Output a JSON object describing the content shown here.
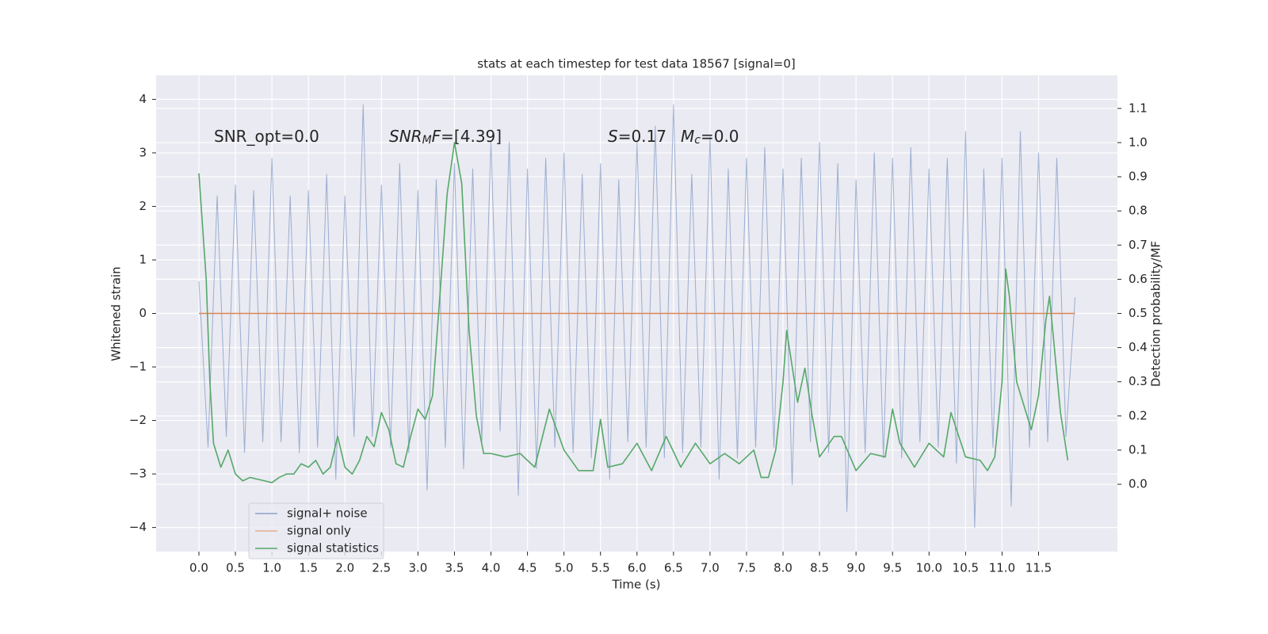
{
  "chart_data": {
    "type": "line",
    "title": "stats at each timestep for test data 18567 [signal=0]",
    "xlabel": "Time (s)",
    "ylabel": "Whitened strain",
    "y2label": "Detection probability/MF",
    "annotations": [
      [
        {
          "text": "SNR_opt=0.0"
        }
      ],
      [
        {
          "text": "SNR",
          "style": "italic"
        },
        {
          "text": "M",
          "style": "sub"
        },
        {
          "text": "F",
          "style": "italic"
        },
        {
          "text": "=[4.39]"
        }
      ],
      [
        {
          "text": "S",
          "style": "italic"
        },
        {
          "text": "=0.17"
        }
      ],
      [
        {
          "text": "M",
          "style": "italic"
        },
        {
          "text": "c",
          "style": "sub"
        },
        {
          "text": "=0.0"
        }
      ]
    ],
    "xlim": [
      -0.586,
      12.58
    ],
    "ylim": [
      -4.45,
      4.45
    ],
    "y2lim": [
      -0.197,
      1.197
    ],
    "xticks": [
      {
        "value": 0,
        "label": "0.0"
      },
      0.5,
      {
        "value": 1,
        "label": "1.0"
      },
      1.5,
      {
        "value": 2,
        "label": "2.0"
      },
      2.5,
      {
        "value": 3,
        "label": "3.0"
      },
      3.5,
      {
        "value": 4,
        "label": "4.0"
      },
      4.5,
      {
        "value": 5,
        "label": "5.0"
      },
      5.5,
      {
        "value": 6,
        "label": "6.0"
      },
      6.5,
      {
        "value": 7,
        "label": "7.0"
      },
      7.5,
      {
        "value": 8,
        "label": "8.0"
      },
      8.5,
      {
        "value": 9,
        "label": "9.0"
      },
      9.5,
      {
        "value": 10,
        "label": "10.0"
      },
      10.5,
      {
        "value": 11,
        "label": "11.0"
      },
      11.5
    ],
    "yticks": [
      {
        "value": -4,
        "label": "−4"
      },
      {
        "value": -3,
        "label": "−3"
      },
      {
        "value": -2,
        "label": "−2"
      },
      {
        "value": -1,
        "label": "−1"
      },
      0,
      1,
      2,
      3,
      4
    ],
    "y2ticks": [
      {
        "value": 0,
        "label": "0.0"
      },
      0.1,
      0.2,
      0.3,
      0.4,
      0.5,
      0.6,
      0.7,
      0.8,
      0.9,
      {
        "value": 1,
        "label": "1.0"
      },
      1.1
    ],
    "grid": true,
    "legend": "lower left",
    "series": [
      {
        "name": "signal+ noise",
        "color": "#4c72b0",
        "x": [
          0,
          0.125,
          0.25,
          0.375,
          0.5,
          0.625,
          0.75,
          0.875,
          1,
          1.125,
          1.25,
          1.375,
          1.5,
          1.625,
          1.75,
          1.875,
          2,
          2.125,
          2.25,
          2.375,
          2.5,
          2.625,
          2.75,
          2.875,
          3,
          3.125,
          3.25,
          3.375,
          3.5,
          3.625,
          3.75,
          3.875,
          4,
          4.125,
          4.25,
          4.375,
          4.5,
          4.625,
          4.75,
          4.875,
          5,
          5.125,
          5.25,
          5.375,
          5.5,
          5.625,
          5.75,
          5.875,
          6,
          6.125,
          6.25,
          6.375,
          6.5,
          6.625,
          6.75,
          6.875,
          7,
          7.125,
          7.25,
          7.375,
          7.5,
          7.625,
          7.75,
          7.875,
          8,
          8.125,
          8.25,
          8.375,
          8.5,
          8.625,
          8.75,
          8.875,
          9,
          9.125,
          9.25,
          9.375,
          9.5,
          9.625,
          9.75,
          9.875,
          10,
          10.125,
          10.25,
          10.375,
          10.5,
          10.625,
          10.75,
          10.875,
          11,
          11.125,
          11.25,
          11.375,
          11.5,
          11.625,
          11.75,
          11.875,
          12
        ],
        "values": [
          0.6,
          -2.5,
          2.2,
          -2.3,
          2.4,
          -2.6,
          2.3,
          -2.4,
          2.9,
          -2.4,
          2.2,
          -2.6,
          2.3,
          -2.5,
          2.6,
          -3.1,
          2.2,
          -2.3,
          3.9,
          -2.3,
          2.4,
          -2.5,
          2.8,
          -2.6,
          2.3,
          -3.3,
          2.5,
          -2.5,
          2.8,
          -2.9,
          2.7,
          -2.4,
          3.2,
          -2.2,
          3.2,
          -3.4,
          2.7,
          -2.9,
          2.9,
          -2.5,
          3.0,
          -2.6,
          2.6,
          -2.7,
          2.8,
          -3.1,
          2.5,
          -2.4,
          3.2,
          -2.5,
          3.5,
          -2.7,
          3.9,
          -2.6,
          2.6,
          -2.5,
          3.3,
          -3.1,
          2.7,
          -2.7,
          2.9,
          -2.5,
          3.1,
          -2.5,
          2.7,
          -3.2,
          2.9,
          -2.4,
          3.2,
          -2.6,
          2.8,
          -3.7,
          2.5,
          -2.6,
          3.0,
          -2.7,
          2.9,
          -2.7,
          3.1,
          -2.4,
          2.7,
          -2.5,
          2.9,
          -2.8,
          3.4,
          -4.0,
          2.7,
          -2.5,
          2.9,
          -3.6,
          3.4,
          -2.5,
          3.0,
          -2.4,
          2.9,
          -2.3,
          0.3
        ]
      },
      {
        "name": "signal only",
        "color": "#dd8452",
        "x": [
          0,
          12
        ],
        "values": [
          0,
          0
        ]
      },
      {
        "name": "signal statistics",
        "color": "#55a868",
        "axis": "y2",
        "x": [
          0,
          0.1,
          0.15,
          0.2,
          0.3,
          0.4,
          0.5,
          0.6,
          0.7,
          0.8,
          0.9,
          1.0,
          1.1,
          1.2,
          1.3,
          1.4,
          1.5,
          1.6,
          1.7,
          1.8,
          1.9,
          2.0,
          2.1,
          2.2,
          2.3,
          2.4,
          2.5,
          2.6,
          2.7,
          2.8,
          2.9,
          3.0,
          3.1,
          3.2,
          3.3,
          3.4,
          3.5,
          3.6,
          3.7,
          3.8,
          3.9,
          4.0,
          4.2,
          4.4,
          4.6,
          4.8,
          5.0,
          5.2,
          5.4,
          5.5,
          5.6,
          5.8,
          6.0,
          6.2,
          6.4,
          6.6,
          6.8,
          7.0,
          7.2,
          7.4,
          7.6,
          7.7,
          7.8,
          7.9,
          8.0,
          8.05,
          8.2,
          8.3,
          8.4,
          8.5,
          8.7,
          8.8,
          9.0,
          9.2,
          9.4,
          9.5,
          9.6,
          9.8,
          10.0,
          10.2,
          10.3,
          10.5,
          10.7,
          10.8,
          10.9,
          11.0,
          11.05,
          11.1,
          11.2,
          11.4,
          11.5,
          11.6,
          11.65,
          11.8,
          11.9
        ],
        "values": [
          0.91,
          0.6,
          0.3,
          0.12,
          0.05,
          0.1,
          0.03,
          0.01,
          0.02,
          0.015,
          0.01,
          0.005,
          0.02,
          0.03,
          0.03,
          0.06,
          0.05,
          0.07,
          0.03,
          0.05,
          0.14,
          0.05,
          0.03,
          0.07,
          0.14,
          0.11,
          0.21,
          0.16,
          0.06,
          0.05,
          0.14,
          0.22,
          0.19,
          0.26,
          0.55,
          0.85,
          1.0,
          0.88,
          0.45,
          0.2,
          0.09,
          0.09,
          0.08,
          0.09,
          0.05,
          0.22,
          0.1,
          0.04,
          0.04,
          0.19,
          0.05,
          0.06,
          0.12,
          0.04,
          0.14,
          0.05,
          0.12,
          0.06,
          0.09,
          0.06,
          0.1,
          0.02,
          0.02,
          0.1,
          0.3,
          0.45,
          0.24,
          0.34,
          0.2,
          0.08,
          0.14,
          0.14,
          0.04,
          0.09,
          0.08,
          0.22,
          0.12,
          0.05,
          0.12,
          0.08,
          0.21,
          0.08,
          0.07,
          0.04,
          0.08,
          0.3,
          0.63,
          0.55,
          0.3,
          0.16,
          0.26,
          0.48,
          0.55,
          0.21,
          0.07
        ]
      }
    ]
  }
}
